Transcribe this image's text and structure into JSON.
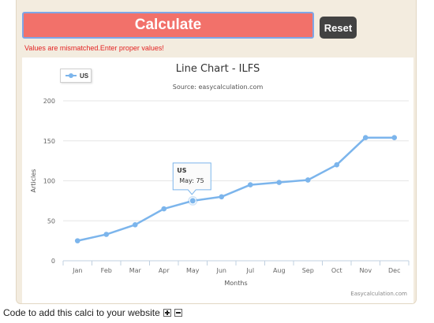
{
  "form": {
    "calculate_label": "Calculate",
    "reset_label": "Reset",
    "error_message": "Values are mismatched.Enter proper values!"
  },
  "chart_data": {
    "type": "line",
    "title": "Line Chart - ILFS",
    "subtitle": "Source: easycalculation.com",
    "xlabel": "Months",
    "ylabel": "Articles",
    "categories": [
      "Jan",
      "Feb",
      "Mar",
      "Apr",
      "May",
      "Jun",
      "Jul",
      "Aug",
      "Sep",
      "Oct",
      "Nov",
      "Dec"
    ],
    "series": [
      {
        "name": "US",
        "color": "#7cb5ec",
        "values": [
          25,
          33,
          45,
          65,
          75,
          80,
          95,
          98,
          101,
          120,
          154,
          154
        ]
      }
    ],
    "ylim": [
      0,
      200
    ],
    "yticks": [
      0,
      50,
      100,
      150,
      200
    ],
    "grid": true,
    "legend": "top-left",
    "tooltip": {
      "series": "US",
      "label": "May: 75"
    },
    "credit": "Easycalculation.com"
  },
  "footer": {
    "text": "Code to add this calci to your website",
    "expand_icon": "plus-box-icon",
    "collapse_icon": "minus-box-icon"
  }
}
